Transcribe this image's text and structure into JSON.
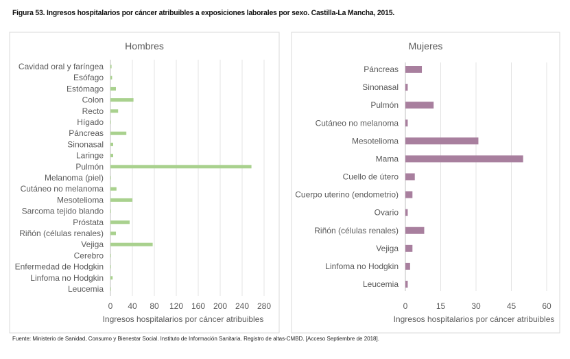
{
  "figure_title": "Figura 53. Ingresos hospitalarios por cáncer atribuibles a exposiciones laborales por sexo. Castilla-La Mancha, 2015.",
  "source": "Fuente: Ministerio de Sanidad, Consumo y Bienestar Social. Instituto de Información Sanitaria. Registro de altas-CMBD. [Acceso Septiembre de 2018].",
  "chart_data": [
    {
      "type": "bar",
      "orientation": "horizontal",
      "title": "Hombres",
      "xlabel": "Ingresos hospitalarios por cáncer atribuibles",
      "xlim": [
        0,
        280
      ],
      "xticks": [
        0,
        40,
        80,
        120,
        160,
        200,
        240,
        280
      ],
      "grid": true,
      "color": "#a9d18e",
      "categories": [
        "Cavidad oral y faríngea",
        "Esófago",
        "Estómago",
        "Colon",
        "Recto",
        "Hígado",
        "Páncreas",
        "Sinonasal",
        "Laringe",
        "Pulmón",
        "Melanoma (piel)",
        "Cutáneo no melanoma",
        "Mesotelioma",
        "Sarcoma tejido blando",
        "Próstata",
        "Riñón (células renales)",
        "Vejiga",
        "Cerebro",
        "Enfermedad de Hodgkin",
        "Linfoma no Hodgkin",
        "Leucemia"
      ],
      "values": [
        2,
        3,
        10,
        42,
        14,
        0,
        29,
        5,
        5,
        257,
        1,
        11,
        40,
        0,
        35,
        10,
        77,
        0,
        1,
        4,
        1
      ]
    },
    {
      "type": "bar",
      "orientation": "horizontal",
      "title": "Mujeres",
      "xlabel": "Ingresos hospitalarios por cáncer atribuibles",
      "xlim": [
        0,
        60
      ],
      "xticks": [
        0,
        15,
        30,
        45,
        60
      ],
      "grid": true,
      "color": "#a87f9e",
      "categories": [
        "Páncreas",
        "Sinonasal",
        "Pulmón",
        "Cutáneo no melanoma",
        "Mesotelioma",
        "Mama",
        "Cuello de útero",
        "Cuerpo uterino (endometrio)",
        "Ovario",
        "Riñón (células renales)",
        "Vejiga",
        "Linfoma no Hodgkin",
        "Leucemia"
      ],
      "values": [
        7,
        1,
        12,
        1,
        31,
        50,
        4,
        3,
        1,
        8,
        3,
        2,
        1
      ]
    }
  ]
}
